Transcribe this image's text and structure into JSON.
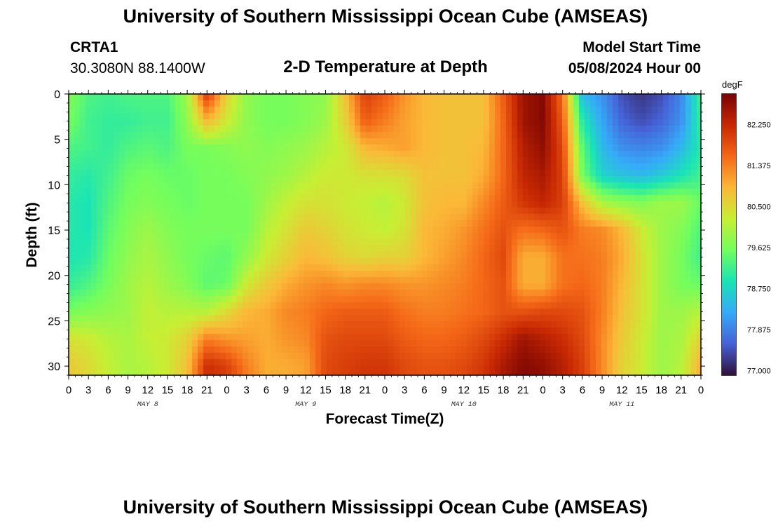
{
  "header": {
    "title": "University of Southern Mississippi Ocean Cube (AMSEAS)",
    "station_id": "CRTA1",
    "coordinates": "30.3080N  88.1400W",
    "plot_title": "2-D Temperature at Depth",
    "model_start_label": "Model Start Time",
    "model_start_value": "05/08/2024 Hour 00"
  },
  "footer": {
    "title": "University of Southern Mississippi Ocean Cube (AMSEAS)"
  },
  "colors": {
    "colormap": [
      "#30123b",
      "#4662d7",
      "#36aaf9",
      "#1ae4b6",
      "#72fe5e",
      "#c7ef34",
      "#fbb938",
      "#f56918",
      "#c92903",
      "#7a0403"
    ]
  },
  "chart_data": {
    "type": "heatmap",
    "xlabel": "Forecast Time(Z)",
    "ylabel": "Depth (ft)",
    "x_tick_labels": [
      "0",
      "3",
      "6",
      "9",
      "12",
      "15",
      "18",
      "21",
      "0",
      "3",
      "6",
      "9",
      "12",
      "15",
      "18",
      "21",
      "0",
      "3",
      "6",
      "9",
      "12",
      "15",
      "18",
      "21",
      "0",
      "3",
      "6",
      "9",
      "12",
      "15",
      "18",
      "21",
      "0"
    ],
    "x_range_hours": [
      0,
      96
    ],
    "day_labels": [
      {
        "label": "MAY 8",
        "hour": 12
      },
      {
        "label": "MAY 9",
        "hour": 36
      },
      {
        "label": "MAY 10",
        "hour": 60
      },
      {
        "label": "MAY 11",
        "hour": 84
      }
    ],
    "y_ticks": [
      0,
      5,
      10,
      15,
      20,
      25,
      30
    ],
    "y_tick_labels": [
      "0",
      "5",
      "10",
      "15",
      "20",
      "25",
      "30"
    ],
    "ylim": [
      0,
      31
    ],
    "y_inverted": true,
    "colorbar": {
      "unit": "degF",
      "min": 76.9,
      "max": 82.9,
      "tick_values": [
        77.0,
        77.875,
        78.75,
        79.625,
        80.5,
        81.375,
        82.25
      ],
      "tick_labels": [
        "77.000",
        "77.875",
        "78.750",
        "79.625",
        "80.500",
        "81.375",
        "82.250"
      ]
    },
    "depths_ft": [
      0,
      3,
      6,
      9,
      12,
      15,
      18,
      21,
      24,
      27,
      30
    ],
    "times_hours": [
      0,
      3,
      6,
      9,
      12,
      15,
      18,
      21,
      24,
      27,
      30,
      33,
      36,
      39,
      42,
      45,
      48,
      51,
      54,
      57,
      60,
      63,
      66,
      69,
      72,
      75,
      78,
      81,
      84,
      87,
      90,
      93,
      96
    ],
    "values_degF": [
      [
        79.7,
        79.3,
        79.2,
        79.3,
        79.3,
        79.3,
        79.9,
        82.1,
        80.6,
        79.8,
        79.6,
        79.6,
        79.7,
        79.8,
        80.8,
        82.0,
        81.7,
        81.2,
        80.9,
        80.8,
        80.8,
        80.8,
        81.7,
        82.6,
        82.8,
        81.5,
        78.4,
        78.0,
        77.4,
        77.2,
        77.4,
        77.9,
        79.2
      ],
      [
        79.6,
        79.2,
        79.1,
        79.1,
        79.2,
        79.2,
        79.8,
        80.9,
        80.3,
        79.8,
        79.6,
        79.6,
        79.7,
        79.9,
        80.6,
        81.7,
        81.4,
        81.1,
        80.9,
        80.8,
        80.8,
        80.8,
        81.6,
        82.6,
        82.8,
        81.7,
        79.0,
        78.2,
        77.6,
        77.4,
        77.6,
        78.0,
        79.1
      ],
      [
        79.3,
        79.2,
        79.1,
        79.3,
        79.4,
        79.3,
        79.6,
        79.6,
        79.7,
        79.8,
        79.7,
        79.8,
        79.9,
        80.1,
        80.3,
        80.9,
        81.0,
        81.1,
        80.9,
        80.8,
        80.8,
        80.9,
        81.6,
        82.4,
        82.7,
        81.9,
        79.4,
        78.4,
        78.0,
        77.9,
        78.0,
        78.4,
        79.0
      ],
      [
        79.1,
        79.0,
        79.2,
        79.5,
        79.6,
        79.5,
        79.5,
        79.6,
        79.6,
        79.7,
        79.8,
        79.9,
        80.1,
        80.3,
        80.3,
        80.4,
        80.4,
        80.5,
        80.8,
        80.8,
        80.8,
        81.0,
        81.6,
        82.3,
        82.5,
        82.0,
        79.6,
        78.7,
        78.5,
        78.4,
        78.6,
        78.9,
        79.2
      ],
      [
        79.0,
        78.9,
        79.3,
        79.6,
        79.7,
        79.6,
        79.5,
        79.6,
        79.6,
        79.6,
        79.9,
        80.2,
        80.4,
        80.4,
        80.3,
        80.2,
        80.1,
        80.3,
        80.8,
        80.9,
        80.9,
        81.3,
        81.7,
        82.1,
        82.3,
        82.0,
        80.8,
        80.0,
        79.8,
        79.7,
        79.9,
        79.9,
        79.5
      ],
      [
        79.0,
        78.9,
        79.4,
        79.7,
        79.9,
        79.7,
        79.6,
        79.6,
        79.6,
        79.6,
        80.1,
        80.4,
        80.7,
        80.6,
        80.4,
        80.3,
        80.2,
        80.4,
        80.9,
        81.0,
        81.2,
        81.5,
        81.8,
        81.5,
        81.6,
        81.8,
        81.4,
        81.3,
        80.9,
        80.3,
        79.9,
        79.7,
        79.3
      ],
      [
        78.9,
        79.0,
        79.5,
        79.8,
        80.0,
        79.8,
        79.6,
        79.5,
        79.4,
        79.8,
        80.3,
        80.6,
        80.9,
        80.8,
        80.6,
        80.5,
        80.6,
        80.6,
        80.9,
        81.1,
        81.3,
        81.6,
        81.9,
        81.0,
        81.0,
        81.5,
        81.5,
        81.4,
        81.0,
        80.4,
        79.9,
        79.6,
        79.2
      ],
      [
        79.1,
        79.3,
        79.6,
        79.9,
        80.1,
        79.9,
        79.7,
        79.4,
        79.5,
        80.3,
        80.7,
        81.0,
        81.2,
        81.3,
        81.2,
        81.3,
        81.3,
        81.2,
        81.2,
        81.3,
        81.4,
        81.6,
        81.8,
        81.0,
        81.0,
        81.5,
        81.6,
        81.4,
        80.9,
        80.4,
        79.9,
        79.6,
        79.5
      ],
      [
        79.6,
        79.7,
        79.8,
        79.9,
        80.2,
        80.1,
        80.1,
        80.1,
        80.5,
        80.9,
        81.0,
        81.3,
        81.4,
        81.6,
        81.7,
        81.7,
        81.7,
        81.5,
        81.4,
        81.4,
        81.5,
        81.6,
        81.8,
        81.8,
        81.9,
        81.9,
        81.8,
        81.4,
        80.8,
        80.4,
        79.9,
        79.9,
        80.1
      ],
      [
        80.4,
        80.3,
        80.1,
        80.0,
        80.2,
        80.3,
        80.6,
        81.4,
        81.2,
        81.1,
        81.0,
        81.2,
        81.3,
        81.8,
        81.9,
        81.9,
        81.9,
        81.7,
        81.6,
        81.6,
        81.7,
        81.9,
        82.2,
        82.6,
        82.4,
        82.2,
        81.9,
        81.3,
        80.7,
        80.3,
        79.9,
        80.0,
        80.6
      ],
      [
        80.7,
        80.5,
        80.2,
        80.0,
        80.1,
        80.3,
        80.8,
        82.2,
        82.0,
        81.4,
        81.0,
        81.0,
        81.1,
        81.9,
        82.0,
        82.1,
        82.1,
        81.9,
        81.8,
        81.8,
        81.9,
        82.1,
        82.5,
        82.8,
        82.7,
        82.4,
        82.0,
        81.3,
        80.6,
        80.3,
        79.9,
        80.1,
        81.0
      ]
    ]
  }
}
